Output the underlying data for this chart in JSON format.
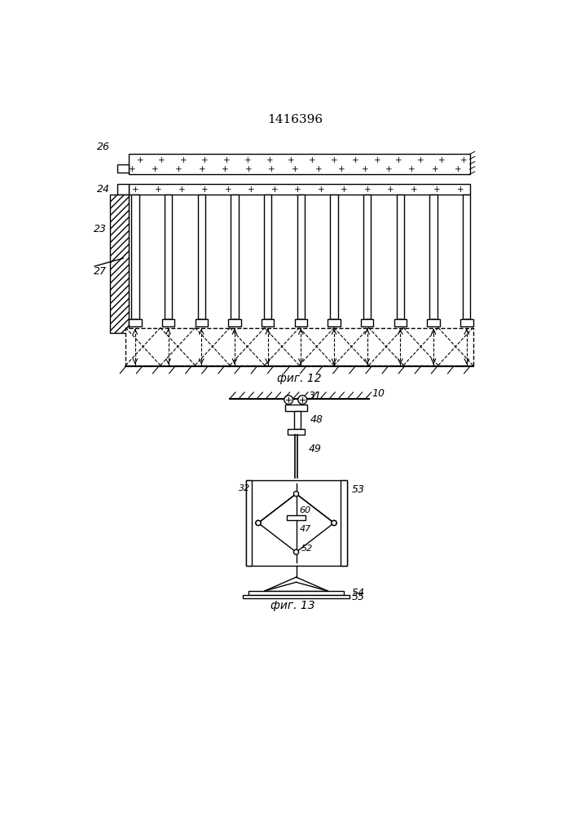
{
  "title": "1416396",
  "fig1_label": "фиг. 12",
  "fig2_label": "фиг. 13",
  "bg_color": "#ffffff",
  "line_color": "#000000"
}
